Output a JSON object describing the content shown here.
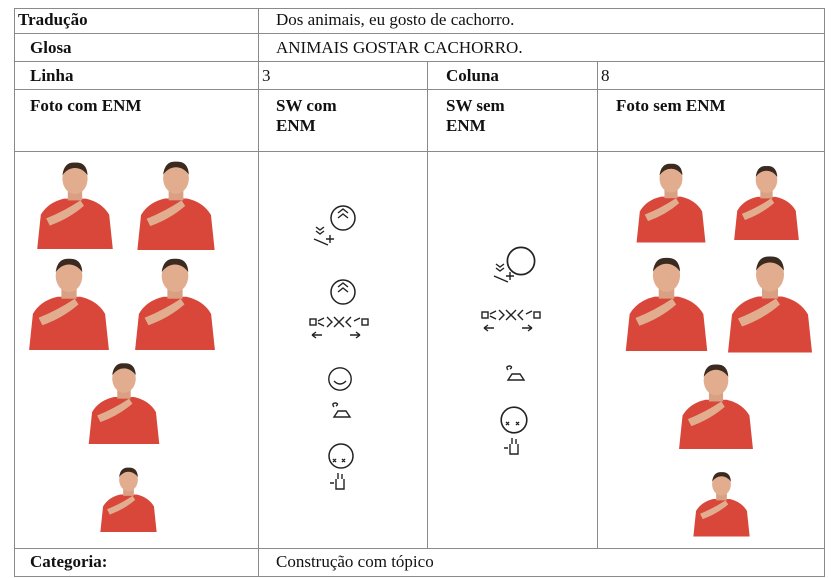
{
  "table": {
    "rows": [
      [
        "Tradução",
        "Dos animais, eu gosto de cachorro."
      ],
      [
        "Glosa",
        "ANIMAIS GOSTAR CACHORRO."
      ],
      [
        "Linha",
        3,
        "Coluna",
        8
      ],
      [
        "Foto com ENM",
        "SW com ENM",
        "SW sem ENM",
        "Foto sem ENM"
      ],
      [
        "Categoria:",
        "Construção com tópico"
      ]
    ]
  }
}
